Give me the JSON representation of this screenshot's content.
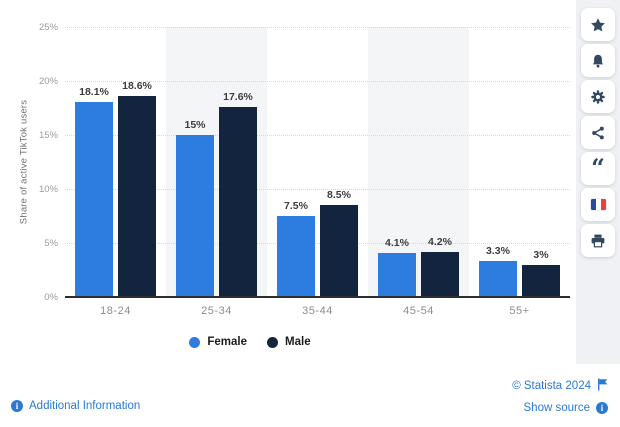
{
  "chart_data": {
    "type": "bar",
    "title": "",
    "ylabel": "Share of active TikTok users",
    "xlabel": "",
    "ylim": [
      0,
      25
    ],
    "yticks": [
      "0%",
      "5%",
      "10%",
      "15%",
      "20%",
      "25%"
    ],
    "grid": "horizontal-dotted",
    "legend_position": "bottom",
    "categories": [
      "18-24",
      "25-34",
      "35-44",
      "45-54",
      "55+"
    ],
    "series": [
      {
        "name": "Female",
        "color": "#2D7DE1",
        "values": [
          18.1,
          15,
          7.5,
          4.1,
          3.3
        ],
        "labels": [
          "18.1%",
          "15%",
          "7.5%",
          "4.1%",
          "3.3%"
        ]
      },
      {
        "name": "Male",
        "color": "#13243E",
        "values": [
          18.6,
          17.6,
          8.5,
          4.2,
          3
        ],
        "labels": [
          "18.6%",
          "17.6%",
          "8.5%",
          "4.2%",
          "3%"
        ]
      }
    ]
  },
  "sidebar": {
    "items": [
      {
        "label": "favorite",
        "icon": "star-icon"
      },
      {
        "label": "notifications",
        "icon": "bell-icon"
      },
      {
        "label": "settings",
        "icon": "gear-icon"
      },
      {
        "label": "share",
        "icon": "share-icon"
      },
      {
        "label": "cite",
        "icon": "quote-icon"
      },
      {
        "label": "language-french",
        "icon": "french-flag-icon"
      },
      {
        "label": "print",
        "icon": "printer-icon"
      }
    ]
  },
  "footer": {
    "additional_information": "Additional Information",
    "copyright": "© Statista 2024",
    "show_source": "Show source"
  },
  "colors": {
    "female_bar": "#2D7DE1",
    "male_bar": "#13243E",
    "link_blue": "#2A7AD4",
    "band": "#F4F5F7",
    "sidebar_strip": "#EFF1F4",
    "icon": "#33495F"
  }
}
